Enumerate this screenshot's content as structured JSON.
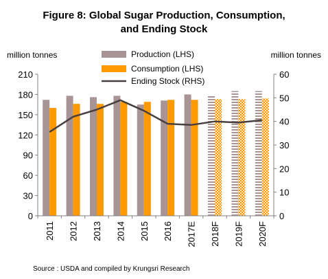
{
  "chart_data": {
    "type": "bar",
    "title": "Figure 8: Global Sugar Production, Consumption,",
    "title_line2": "and Ending Stock",
    "ylabel_left": "million tonnes",
    "ylabel_right": "million tonnes",
    "categories": [
      "2011",
      "2012",
      "2013",
      "2014",
      "2015",
      "2016",
      "2017E",
      "2018F",
      "2019F",
      "2020F"
    ],
    "forecast_categories": [
      "2018F",
      "2019F",
      "2020F"
    ],
    "left_axis": {
      "min": 0,
      "max": 210,
      "ticks": [
        0,
        30,
        60,
        90,
        120,
        150,
        180,
        210
      ]
    },
    "right_axis": {
      "min": 0,
      "max": 60,
      "ticks": [
        0,
        10,
        20,
        30,
        40,
        50,
        60
      ]
    },
    "series": [
      {
        "name": "Production (LHS)",
        "kind": "bar",
        "axis": "left",
        "color": "#a89494",
        "values": [
          172,
          178,
          176,
          178,
          165,
          171,
          180,
          179,
          185,
          185
        ]
      },
      {
        "name": "Consumption (LHS)",
        "kind": "bar",
        "axis": "left",
        "color": "#ff9900",
        "values": [
          160,
          166,
          166,
          169,
          169,
          172,
          172,
          173,
          173,
          174
        ]
      },
      {
        "name": "Ending Stock (RHS)",
        "kind": "line",
        "axis": "right",
        "color": "#4a3f3f",
        "values": [
          35.5,
          42.0,
          45.0,
          49.0,
          44.5,
          39.0,
          38.5,
          40.0,
          39.5,
          40.5
        ]
      }
    ],
    "legend_position": "top-center",
    "grid": false
  },
  "source": "Source :  USDA and compiled by Krungsri Research"
}
